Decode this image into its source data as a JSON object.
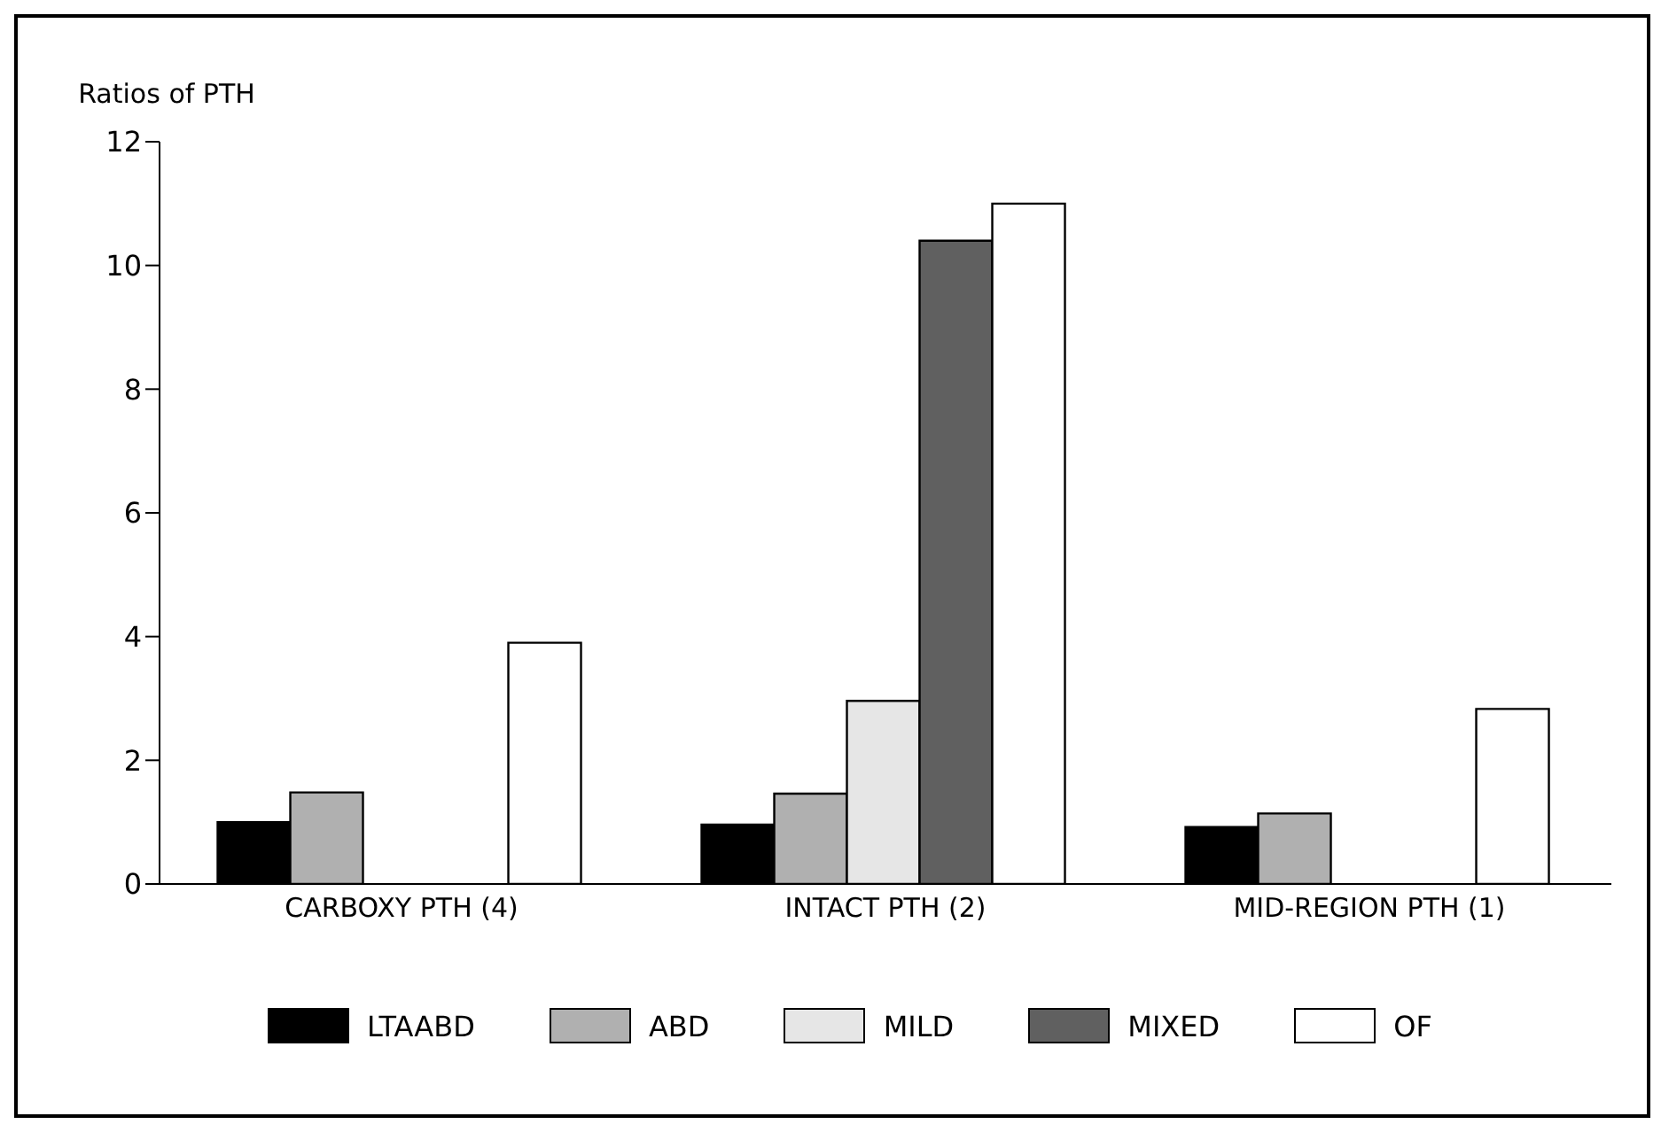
{
  "chart_data": {
    "type": "bar",
    "ylabel": "Ratios of PTH",
    "categories": [
      "CARBOXY PTH (4)",
      "INTACT PTH (2)",
      "MID-REGION PTH (1)"
    ],
    "series": [
      {
        "name": "LTAABD",
        "color": "#000000",
        "values": [
          1.0,
          0.96,
          0.92
        ]
      },
      {
        "name": "ABD",
        "color": "#b0b0b0",
        "values": [
          1.48,
          1.46,
          1.14
        ]
      },
      {
        "name": "MILD",
        "color": "#e6e6e6",
        "values": [
          null,
          2.96,
          null
        ]
      },
      {
        "name": "MIXED",
        "color": "#606060",
        "values": [
          null,
          10.4,
          null
        ]
      },
      {
        "name": "OF",
        "color": "#ffffff",
        "values": [
          3.9,
          11.0,
          2.83
        ]
      }
    ],
    "ylim": [
      0,
      12
    ],
    "yticks": [
      0,
      2,
      4,
      6,
      8,
      10,
      12
    ],
    "grid": false,
    "legend": "bottom"
  }
}
